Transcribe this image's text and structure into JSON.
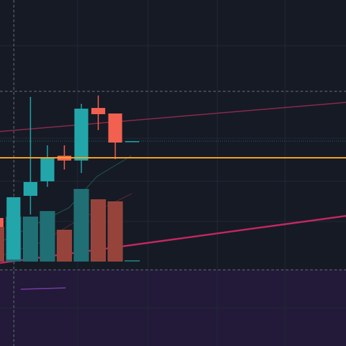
{
  "chart_data": {
    "type": "candlestick",
    "categories": [
      null,
      null,
      null,
      null,
      null,
      null,
      null,
      null,
      null
    ],
    "open": [
      185,
      125,
      217,
      238,
      275,
      268,
      344,
      336,
      295
    ],
    "close": [
      172,
      215,
      237,
      272,
      268,
      343,
      335,
      294,
      296
    ],
    "high": [
      187,
      215,
      360,
      290,
      290,
      350,
      362,
      336,
      296
    ],
    "low": [
      170,
      125,
      190,
      230,
      255,
      250,
      312,
      270,
      295
    ],
    "volume": [
      50,
      65,
      65,
      73,
      46,
      105,
      90,
      87,
      2
    ],
    "price_line": 272,
    "ylim": [
      0,
      500
    ],
    "up_color": "#22a6aa",
    "down_color": "#f26050",
    "volume_up_color": "#1f6f74",
    "volume_down_color": "#96443b",
    "price_line_color": "#f5a623"
  }
}
